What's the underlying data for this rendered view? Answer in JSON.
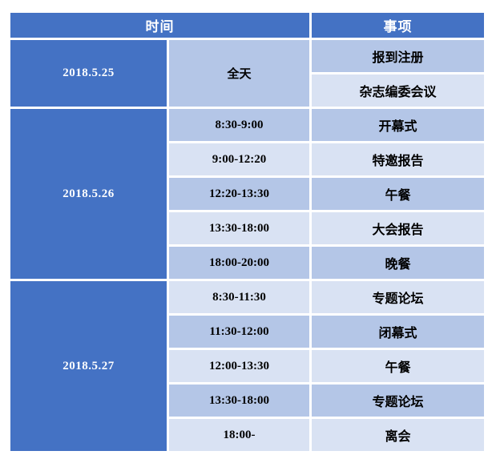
{
  "table": {
    "headers": {
      "time": "时间",
      "item": "事项"
    },
    "sections": [
      {
        "date": "2018.5.25",
        "rows": [
          {
            "time": "全天",
            "item": "报到注册"
          },
          {
            "item": "杂志编委会议"
          }
        ]
      },
      {
        "date": "2018.5.26",
        "rows": [
          {
            "time": "8:30-9:00",
            "item": "开幕式"
          },
          {
            "time": "9:00-12:20",
            "item": "特邀报告"
          },
          {
            "time": "12:20-13:30",
            "item": "午餐"
          },
          {
            "time": "13:30-18:00",
            "item": "大会报告"
          },
          {
            "time": "18:00-20:00",
            "item": "晚餐"
          }
        ]
      },
      {
        "date": "2018.5.27",
        "rows": [
          {
            "time": "8:30-11:30",
            "item": "专题论坛"
          },
          {
            "time": "11:30-12:00",
            "item": "闭幕式"
          },
          {
            "time": "12:00-13:30",
            "item": "午餐"
          },
          {
            "time": "13:30-18:00",
            "item": "专题论坛"
          },
          {
            "time": "18:00-",
            "item": "离会"
          }
        ]
      }
    ],
    "colors": {
      "header_bg": "#4472C4",
      "date_bg": "#4472C4",
      "band_dark": "#B4C6E7",
      "band_light": "#D9E2F3",
      "grid_line": "#FFFFFF",
      "header_text": "#FFFFFF",
      "body_text": "#000000"
    }
  }
}
